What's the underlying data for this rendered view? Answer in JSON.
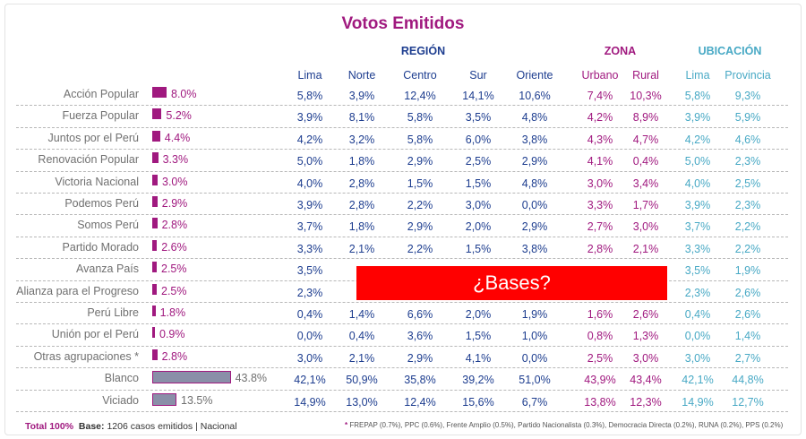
{
  "title": "Votos Emitidos",
  "groups": [
    {
      "label": "REGIÓN",
      "color": "#1d3d8f"
    },
    {
      "label": "ZONA",
      "color": "#a0197f"
    },
    {
      "label": "UBICACIÓN",
      "color": "#48a9c5"
    }
  ],
  "columns": [
    "Lima",
    "Norte",
    "Centro",
    "Sur",
    "Oriente",
    "Urbano",
    "Rural",
    "Lima",
    "Provincia"
  ],
  "chart_data": {
    "type": "bar",
    "categories": [
      "Acción Popular",
      "Fuerza Popular",
      "Juntos por el Perú",
      "Renovación Popular",
      "Victoria Nacional",
      "Podemos Perú",
      "Somos Perú",
      "Partido Morado",
      "Avanza País",
      "Alianza para el Progreso",
      "Perú Libre",
      "Unión por el Perú",
      "Otras agrupaciones *",
      "Blanco",
      "Viciado"
    ],
    "values": [
      8.0,
      5.2,
      4.4,
      3.3,
      3.0,
      2.9,
      2.8,
      2.6,
      2.5,
      2.5,
      1.8,
      0.9,
      2.8,
      43.8,
      13.5
    ],
    "value_labels": [
      "8.0%",
      "5.2%",
      "4.4%",
      "3.3%",
      "3.0%",
      "2.9%",
      "2.8%",
      "2.6%",
      "2.5%",
      "2.5%",
      "1.8%",
      "0.9%",
      "2.8%",
      "43.8%",
      "13.5%"
    ]
  },
  "table": [
    [
      "5,8%",
      "3,9%",
      "12,4%",
      "14,1%",
      "10,6%",
      "7,4%",
      "10,3%",
      "5,8%",
      "9,3%"
    ],
    [
      "3,9%",
      "8,1%",
      "5,8%",
      "3,5%",
      "4,8%",
      "4,2%",
      "8,9%",
      "3,9%",
      "5,9%"
    ],
    [
      "4,2%",
      "3,2%",
      "5,8%",
      "6,0%",
      "3,8%",
      "4,3%",
      "4,7%",
      "4,2%",
      "4,6%"
    ],
    [
      "5,0%",
      "1,8%",
      "2,9%",
      "2,5%",
      "2,9%",
      "4,1%",
      "0,4%",
      "5,0%",
      "2,3%"
    ],
    [
      "4,0%",
      "2,8%",
      "1,5%",
      "1,5%",
      "4,8%",
      "3,0%",
      "3,4%",
      "4,0%",
      "2,5%"
    ],
    [
      "3,9%",
      "2,8%",
      "2,2%",
      "3,0%",
      "0,0%",
      "3,3%",
      "1,7%",
      "3,9%",
      "2,3%"
    ],
    [
      "3,7%",
      "1,8%",
      "2,9%",
      "2,0%",
      "2,9%",
      "2,7%",
      "3,0%",
      "3,7%",
      "2,2%"
    ],
    [
      "3,3%",
      "2,1%",
      "2,2%",
      "1,5%",
      "3,8%",
      "2,8%",
      "2,1%",
      "3,3%",
      "2,2%"
    ],
    [
      "3,5%",
      "",
      "",
      "",
      "",
      "",
      "",
      "3,5%",
      "1,9%"
    ],
    [
      "2,3%",
      "",
      "",
      "",
      "",
      "",
      "",
      "2,3%",
      "2,6%"
    ],
    [
      "0,4%",
      "1,4%",
      "6,6%",
      "2,0%",
      "1,9%",
      "1,6%",
      "2,6%",
      "0,4%",
      "2,6%"
    ],
    [
      "0,0%",
      "0,4%",
      "3,6%",
      "1,5%",
      "1,0%",
      "0,8%",
      "1,3%",
      "0,0%",
      "1,4%"
    ],
    [
      "3,0%",
      "2,1%",
      "2,9%",
      "4,1%",
      "0,0%",
      "2,5%",
      "3,0%",
      "3,0%",
      "2,7%"
    ],
    [
      "42,1%",
      "50,9%",
      "35,8%",
      "39,2%",
      "51,0%",
      "43,9%",
      "43,4%",
      "42,1%",
      "44,8%"
    ],
    [
      "14,9%",
      "13,0%",
      "12,4%",
      "15,6%",
      "6,7%",
      "13,8%",
      "12,3%",
      "14,9%",
      "12,7%"
    ]
  ],
  "overlay_text": "¿Bases?",
  "footer": {
    "total": "Total 100%",
    "base_label": "Base:",
    "base_text": "1206 casos emitidos | Nacional",
    "note_star": "*",
    "note": "FREPAP (0.7%), PPC (0.6%), Frente Amplio (0.5%), Partido Nacionalista (0.3%), Democracia Directa (0.2%), RUNA (0.2%), PPS (0.2%)"
  }
}
